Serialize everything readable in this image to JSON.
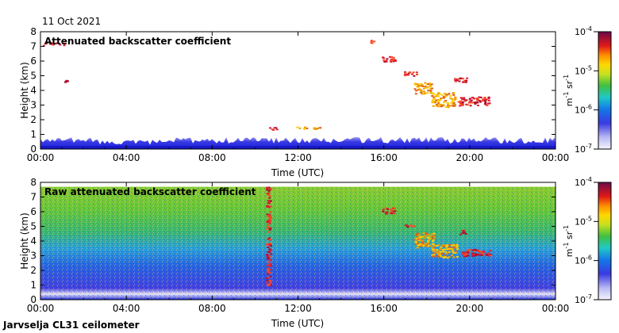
{
  "date_label": "11 Oct 2021",
  "footer_label": "Jarvselja CL31 ceilometer",
  "colors": {
    "plot_background": "#ffffff",
    "low_range": "#2a3ad8",
    "mid_range": "#58c040",
    "high_range": "#c81030"
  },
  "chart_data": [
    {
      "type": "heatmap",
      "title": "Attenuated backscatter coefficient",
      "xlabel": "Time (UTC)",
      "ylabel": "Height (km)",
      "x_ticks": [
        "00:00",
        "04:00",
        "08:00",
        "12:00",
        "16:00",
        "20:00",
        "00:00"
      ],
      "x_range_hours": [
        0,
        24
      ],
      "y_ticks": [
        0,
        1,
        2,
        3,
        4,
        5,
        6,
        7,
        8
      ],
      "ylim": [
        0,
        8
      ],
      "colorbar": {
        "scale": "log",
        "range": [
          1e-07,
          0.0001
        ],
        "tick_labels": [
          "10-7",
          "10-6",
          "10-5",
          "10-4"
        ],
        "tick_display": [
          [
            "10",
            "-7"
          ],
          [
            "10",
            "-6"
          ],
          [
            "10",
            "-5"
          ],
          [
            "10",
            "-4"
          ]
        ],
        "unit_display": [
          "m",
          "-1",
          " sr",
          "-1"
        ]
      },
      "boundary_layer_top_km": 0.6,
      "features": [
        {
          "t0": 0.1,
          "t1": 1.2,
          "h0": 7.1,
          "h1": 7.3,
          "level": "high"
        },
        {
          "t0": 1.1,
          "t1": 1.3,
          "h0": 4.6,
          "h1": 4.75,
          "level": "high"
        },
        {
          "t0": 10.5,
          "t1": 11.0,
          "h0": 1.35,
          "h1": 1.5,
          "level": "high"
        },
        {
          "t0": 11.9,
          "t1": 13.0,
          "h0": 1.4,
          "h1": 1.55,
          "level": "mid"
        },
        {
          "t0": 15.3,
          "t1": 15.5,
          "h0": 7.25,
          "h1": 7.45,
          "level": "high"
        },
        {
          "t0": 15.9,
          "t1": 16.5,
          "h0": 6.0,
          "h1": 6.4,
          "level": "high"
        },
        {
          "t0": 16.9,
          "t1": 17.5,
          "h0": 5.0,
          "h1": 5.3,
          "level": "high"
        },
        {
          "t0": 17.4,
          "t1": 18.2,
          "h0": 3.8,
          "h1": 4.6,
          "level": "mid"
        },
        {
          "t0": 18.2,
          "t1": 19.3,
          "h0": 2.9,
          "h1": 3.9,
          "level": "mid"
        },
        {
          "t0": 19.2,
          "t1": 19.9,
          "h0": 4.6,
          "h1": 4.9,
          "level": "high"
        },
        {
          "t0": 19.4,
          "t1": 20.9,
          "h0": 3.0,
          "h1": 3.6,
          "level": "high"
        }
      ]
    },
    {
      "type": "heatmap",
      "title": "Raw attenuated backscatter coefficient",
      "xlabel": "Time (UTC)",
      "ylabel": "Height (km)",
      "x_ticks": [
        "00:00",
        "04:00",
        "08:00",
        "12:00",
        "16:00",
        "20:00",
        "00:00"
      ],
      "x_range_hours": [
        0,
        24
      ],
      "y_ticks": [
        0,
        1,
        2,
        3,
        4,
        5,
        6,
        7,
        8
      ],
      "ylim": [
        0,
        8
      ],
      "colorbar": {
        "scale": "log",
        "range": [
          1e-07,
          0.0001
        ],
        "tick_labels": [
          "10-7",
          "10-6",
          "10-5",
          "10-4"
        ],
        "tick_display": [
          [
            "10",
            "-7"
          ],
          [
            "10",
            "-6"
          ],
          [
            "10",
            "-5"
          ],
          [
            "10",
            "-4"
          ]
        ],
        "unit_display": [
          "m",
          "-1",
          " sr",
          "-1"
        ]
      },
      "data_top_km": 7.7,
      "features": [
        {
          "t0": 10.5,
          "t1": 10.7,
          "h0": 1.0,
          "h1": 7.7,
          "level": "high"
        },
        {
          "t0": 15.9,
          "t1": 16.5,
          "h0": 5.9,
          "h1": 6.3,
          "level": "high"
        },
        {
          "t0": 16.9,
          "t1": 17.4,
          "h0": 5.0,
          "h1": 5.2,
          "level": "high"
        },
        {
          "t0": 17.4,
          "t1": 18.3,
          "h0": 3.6,
          "h1": 4.6,
          "level": "mid"
        },
        {
          "t0": 18.2,
          "t1": 19.4,
          "h0": 2.9,
          "h1": 3.8,
          "level": "mid"
        },
        {
          "t0": 19.5,
          "t1": 19.8,
          "h0": 4.5,
          "h1": 4.8,
          "level": "high"
        },
        {
          "t0": 19.6,
          "t1": 21.0,
          "h0": 3.0,
          "h1": 3.5,
          "level": "high"
        }
      ]
    }
  ]
}
